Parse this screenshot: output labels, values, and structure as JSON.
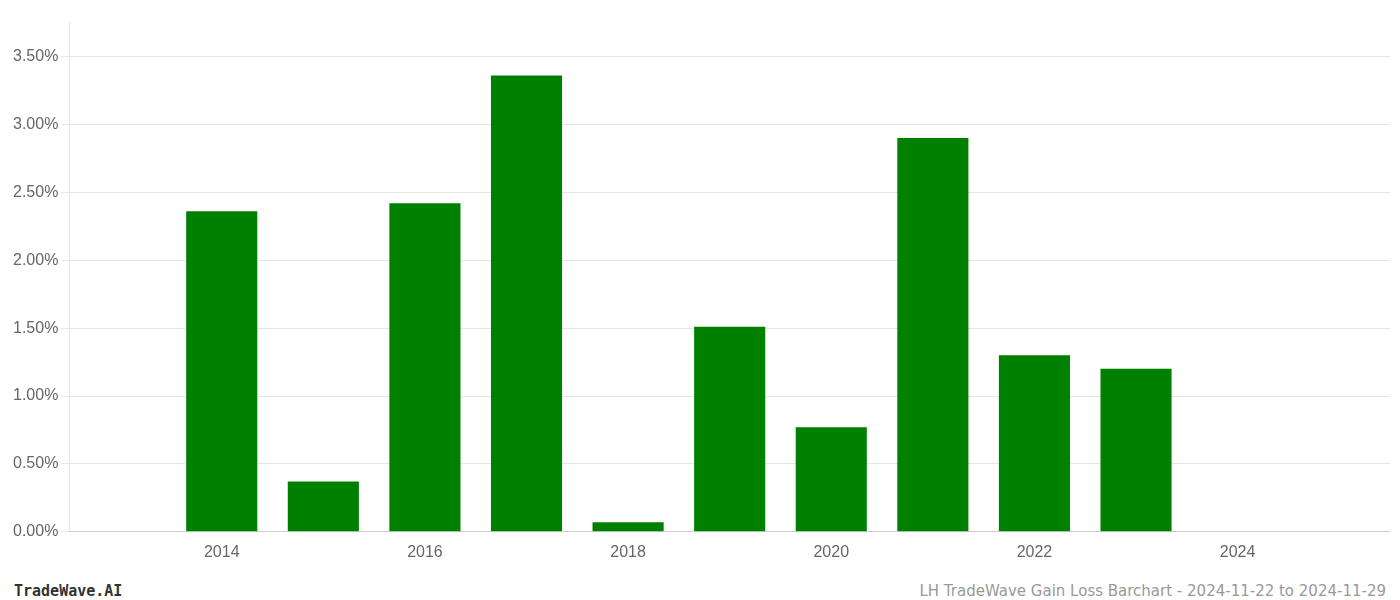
{
  "chart_data": {
    "type": "bar",
    "x": [
      2014,
      2015,
      2016,
      2017,
      2018,
      2019,
      2020,
      2021,
      2022,
      2023
    ],
    "values": [
      0.0236,
      0.0037,
      0.0242,
      0.0336,
      0.0007,
      0.0151,
      0.0077,
      0.029,
      0.013,
      0.012
    ],
    "color": "#008000",
    "xlim": [
      2012.5,
      2025.5
    ],
    "xticks": [
      2014,
      2016,
      2018,
      2020,
      2022,
      2024
    ],
    "ylim": [
      0,
      0.0375
    ],
    "yticks": [
      {
        "value": 0.0,
        "label": "0.00%"
      },
      {
        "value": 0.005,
        "label": "0.50%"
      },
      {
        "value": 0.01,
        "label": "1.00%"
      },
      {
        "value": 0.015,
        "label": "1.50%"
      },
      {
        "value": 0.02,
        "label": "2.00%"
      },
      {
        "value": 0.025,
        "label": "2.50%"
      },
      {
        "value": 0.03,
        "label": "3.00%"
      },
      {
        "value": 0.035,
        "label": "3.50%"
      }
    ],
    "grid": "y",
    "annotations": [
      "TradeWave.AI",
      "LH TradeWave Gain Loss Barchart - 2024-11-22 to 2024-11-29"
    ]
  }
}
